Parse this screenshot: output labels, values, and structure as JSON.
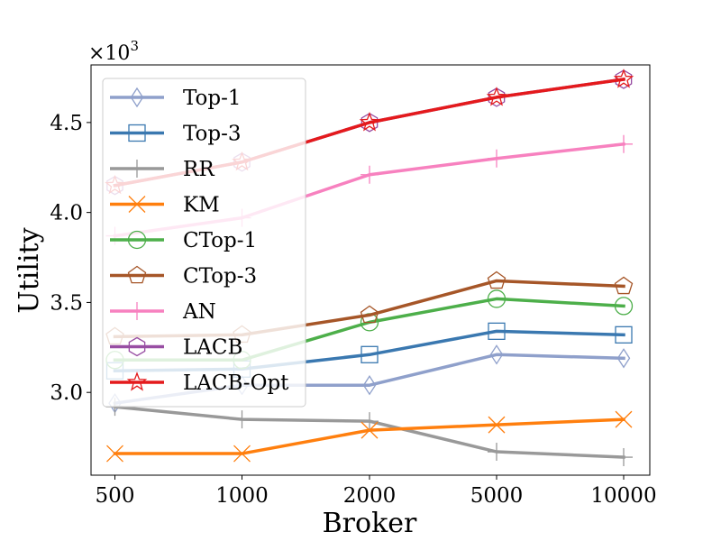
{
  "chart_data": {
    "type": "line",
    "title": "",
    "xlabel": "Broker",
    "ylabel": "Utility",
    "y_scale_label": "×10",
    "y_scale_exponent": "3",
    "categories": [
      "500",
      "1000",
      "2000",
      "5000",
      "10000"
    ],
    "ylim": [
      2.54,
      4.82
    ],
    "yticks": [
      3.0,
      3.5,
      4.0,
      4.5
    ],
    "ytick_labels": [
      "3.0",
      "3.5",
      "4.0",
      "4.5"
    ],
    "grid": false,
    "legend_position": "upper-left",
    "series": [
      {
        "name": "Top-1",
        "color": "#8fa0cb",
        "marker": "thin_diamond",
        "values": [
          2.94,
          3.04,
          3.04,
          3.21,
          3.19
        ]
      },
      {
        "name": "Top-3",
        "color": "#3a78b0",
        "marker": "square",
        "values": [
          3.12,
          3.13,
          3.21,
          3.34,
          3.32
        ]
      },
      {
        "name": "RR",
        "color": "#999999",
        "marker": "plus",
        "values": [
          2.92,
          2.85,
          2.84,
          2.67,
          2.64
        ]
      },
      {
        "name": "KM",
        "color": "#ff7f0e",
        "marker": "x",
        "values": [
          2.66,
          2.66,
          2.79,
          2.82,
          2.85
        ]
      },
      {
        "name": "CTop-1",
        "color": "#4daf4a",
        "marker": "circle",
        "values": [
          3.18,
          3.18,
          3.39,
          3.52,
          3.48
        ]
      },
      {
        "name": "CTop-3",
        "color": "#a65628",
        "marker": "pentagon",
        "values": [
          3.31,
          3.32,
          3.43,
          3.62,
          3.59
        ]
      },
      {
        "name": "AN",
        "color": "#f781bf",
        "marker": "plus",
        "values": [
          3.87,
          3.97,
          4.21,
          4.3,
          4.38
        ]
      },
      {
        "name": "LACB",
        "color": "#984ea3",
        "marker": "hexagon",
        "values": [
          4.15,
          4.28,
          4.5,
          4.64,
          4.74
        ]
      },
      {
        "name": "LACB-Opt",
        "color": "#e41a1c",
        "marker": "star",
        "values": [
          4.15,
          4.28,
          4.5,
          4.64,
          4.74
        ]
      }
    ]
  }
}
